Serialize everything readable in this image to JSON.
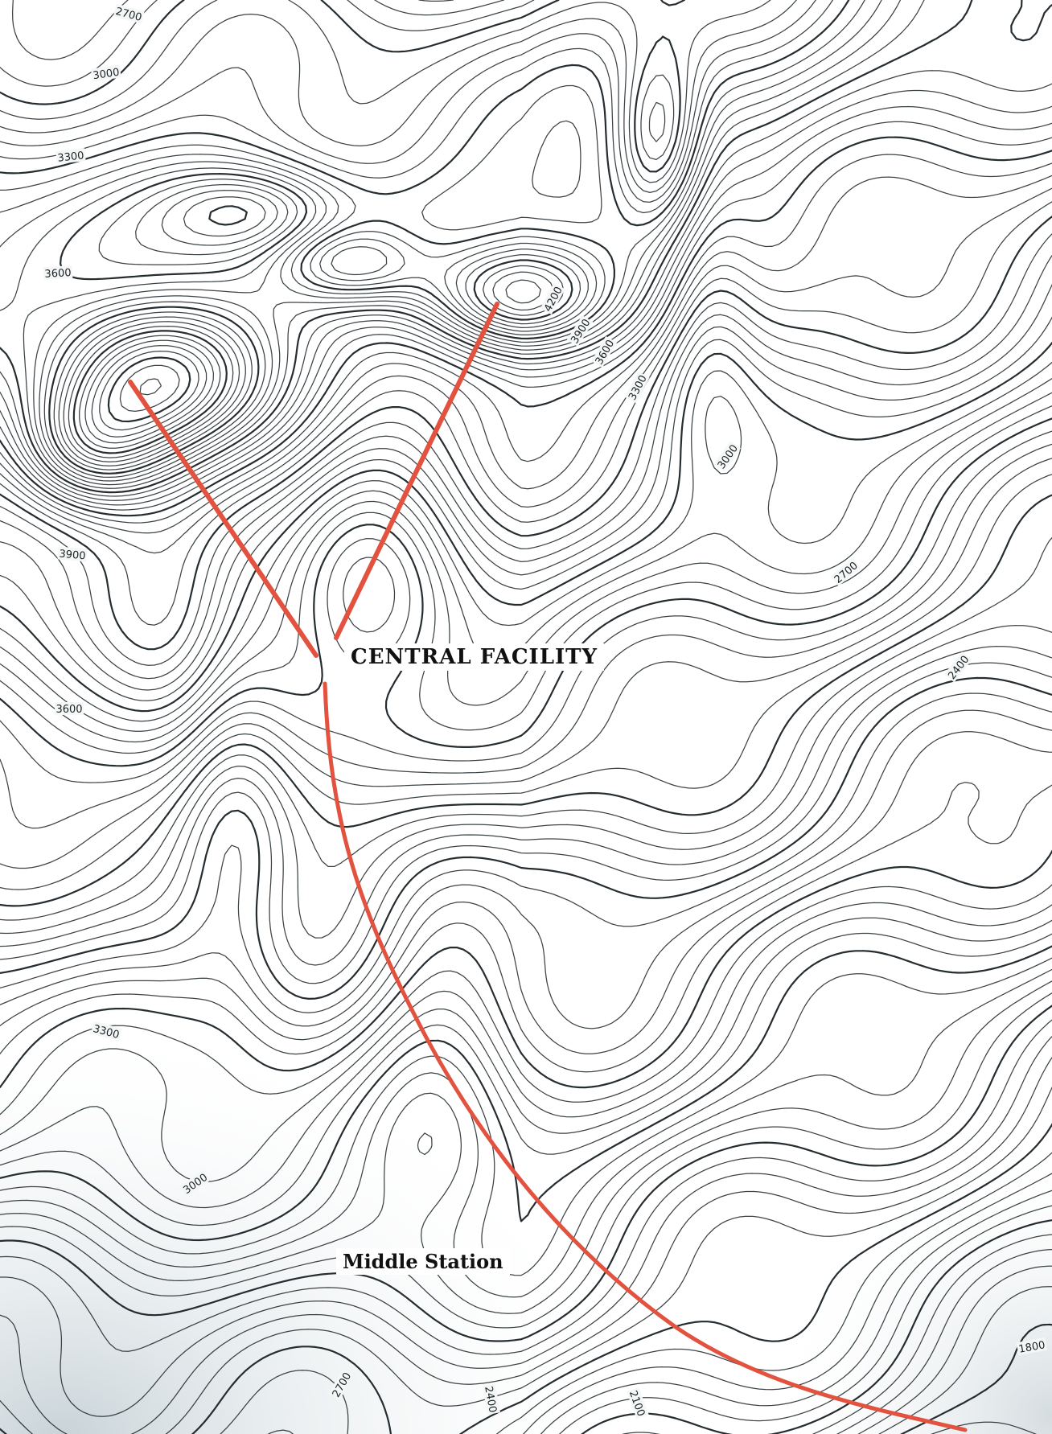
{
  "map": {
    "places": {
      "central_facility": "CENTRAL FACILITY",
      "middle_station": "Middle Station"
    },
    "elevation_labels": [
      {
        "id": "e2700a",
        "text": "2700"
      },
      {
        "id": "e3000a",
        "text": "3000"
      },
      {
        "id": "e3300a",
        "text": "3300"
      },
      {
        "id": "e3600a",
        "text": "3600"
      },
      {
        "id": "e3900",
        "text": "3900"
      },
      {
        "id": "e3600b",
        "text": "3600"
      },
      {
        "id": "e4200",
        "text": "4200"
      },
      {
        "id": "e3900b",
        "text": "3900"
      },
      {
        "id": "e3600c",
        "text": "3600"
      },
      {
        "id": "e3300b",
        "text": "3300"
      },
      {
        "id": "e3000b",
        "text": "3000"
      },
      {
        "id": "e2700b",
        "text": "2700"
      },
      {
        "id": "e2400a",
        "text": "2400"
      },
      {
        "id": "e3300c",
        "text": "3300"
      },
      {
        "id": "e3000c",
        "text": "3000"
      },
      {
        "id": "e2700c",
        "text": "2700"
      },
      {
        "id": "e2400b",
        "text": "2400"
      },
      {
        "id": "e2100",
        "text": "2100"
      },
      {
        "id": "e1800",
        "text": "1800"
      }
    ],
    "colors": {
      "route": "#e2523f",
      "contour": "#1a2226",
      "paper": "#ffffff",
      "shade": "#c9d4d8"
    }
  }
}
